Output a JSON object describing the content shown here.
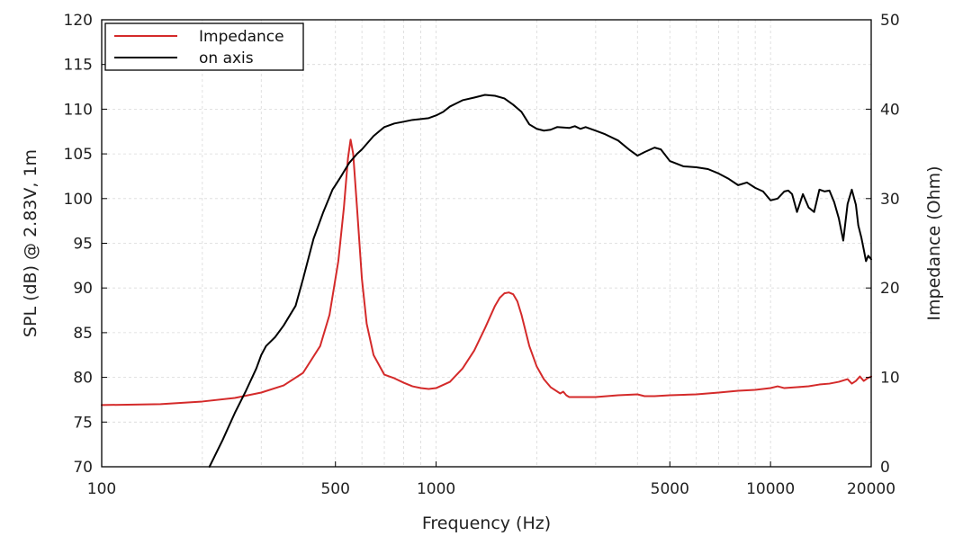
{
  "chart_data": {
    "type": "line",
    "xlabel": "Frequency (Hz)",
    "ylabel": "SPL (dB) @ 2.83V, 1m",
    "y2label": "Impedance (Ohm)",
    "x_scale": "log",
    "xlim": [
      100,
      20000
    ],
    "ylim": [
      70,
      120
    ],
    "y2lim": [
      0,
      50
    ],
    "x_ticks": [
      100,
      500,
      1000,
      5000,
      10000,
      20000
    ],
    "x_tick_labels": [
      "100",
      "500",
      "1000",
      "5000",
      "10000",
      "20000"
    ],
    "y_ticks": [
      70,
      75,
      80,
      85,
      90,
      95,
      100,
      105,
      110,
      115,
      120
    ],
    "y_tick_labels": [
      "70",
      "75",
      "80",
      "85",
      "90",
      "95",
      "100",
      "105",
      "110",
      "115",
      "120"
    ],
    "y2_ticks": [
      0,
      10,
      20,
      30,
      40,
      50
    ],
    "y2_tick_labels": [
      "0",
      "10",
      "20",
      "30",
      "40",
      "50"
    ],
    "grid": true,
    "legend_position": "top-left",
    "series": [
      {
        "name": "Impedance",
        "axis": "right",
        "color": "#d42a2a",
        "x": [
          100,
          150,
          200,
          250,
          300,
          350,
          400,
          450,
          480,
          510,
          530,
          545,
          555,
          565,
          580,
          600,
          620,
          650,
          700,
          750,
          800,
          850,
          900,
          950,
          1000,
          1100,
          1200,
          1300,
          1400,
          1500,
          1550,
          1600,
          1650,
          1700,
          1750,
          1800,
          1900,
          2000,
          2100,
          2200,
          2350,
          2400,
          2450,
          2500,
          3000,
          3500,
          4000,
          4200,
          4500,
          5000,
          6000,
          7000,
          8000,
          9000,
          10000,
          10500,
          11000,
          12000,
          13000,
          14000,
          15000,
          16000,
          17000,
          17500,
          18000,
          18500,
          19000,
          19500,
          20000
        ],
        "y": [
          6.9,
          7.0,
          7.3,
          7.7,
          8.3,
          9.1,
          10.5,
          13.5,
          17,
          23,
          29,
          34.5,
          36.6,
          35,
          29,
          21,
          16,
          12.5,
          10.3,
          9.9,
          9.4,
          9.0,
          8.8,
          8.7,
          8.8,
          9.5,
          11,
          13,
          15.5,
          18,
          18.9,
          19.4,
          19.5,
          19.3,
          18.5,
          17,
          13.5,
          11.2,
          9.8,
          8.9,
          8.2,
          8.4,
          8.0,
          7.8,
          7.8,
          8.0,
          8.1,
          7.9,
          7.9,
          8.0,
          8.1,
          8.3,
          8.5,
          8.6,
          8.8,
          9.0,
          8.8,
          8.9,
          9.0,
          9.2,
          9.3,
          9.5,
          9.8,
          9.3,
          9.6,
          10.1,
          9.6,
          9.9,
          10.1
        ]
      },
      {
        "name": "on axis",
        "axis": "left",
        "color": "#000000",
        "x": [
          210,
          230,
          250,
          270,
          290,
          300,
          310,
          330,
          350,
          380,
          400,
          430,
          460,
          490,
          500,
          520,
          550,
          580,
          600,
          650,
          700,
          750,
          800,
          850,
          900,
          950,
          1000,
          1050,
          1100,
          1200,
          1300,
          1400,
          1500,
          1600,
          1700,
          1800,
          1900,
          2000,
          2100,
          2200,
          2300,
          2500,
          2600,
          2700,
          2800,
          3000,
          3200,
          3500,
          3800,
          4000,
          4200,
          4500,
          4700,
          5000,
          5500,
          6000,
          6500,
          7000,
          7500,
          8000,
          8500,
          9000,
          9500,
          10000,
          10500,
          11000,
          11300,
          11600,
          12000,
          12500,
          13000,
          13500,
          14000,
          14500,
          15000,
          15500,
          16000,
          16500,
          17000,
          17500,
          18000,
          18300,
          18700,
          19000,
          19300,
          19600,
          20000
        ],
        "y": [
          70,
          73,
          76,
          78.5,
          81,
          82.5,
          83.5,
          84.5,
          85.8,
          88,
          91,
          95.5,
          98.5,
          101,
          101.5,
          102.5,
          104,
          105,
          105.5,
          107,
          108,
          108.4,
          108.6,
          108.8,
          108.9,
          109,
          109.3,
          109.7,
          110.3,
          111,
          111.3,
          111.6,
          111.5,
          111.2,
          110.5,
          109.7,
          108.3,
          107.8,
          107.6,
          107.7,
          108,
          107.9,
          108.1,
          107.8,
          108.0,
          107.6,
          107.2,
          106.5,
          105.4,
          104.8,
          105.2,
          105.7,
          105.5,
          104.2,
          103.6,
          103.5,
          103.3,
          102.8,
          102.2,
          101.5,
          101.8,
          101.2,
          100.8,
          99.8,
          100.0,
          100.8,
          100.9,
          100.5,
          98.5,
          100.5,
          99.0,
          98.5,
          101.0,
          100.8,
          100.9,
          99.6,
          97.8,
          95.3,
          99.4,
          101.0,
          99.3,
          97.0,
          95.6,
          94.3,
          93.0,
          93.6,
          93.2
        ]
      }
    ]
  }
}
